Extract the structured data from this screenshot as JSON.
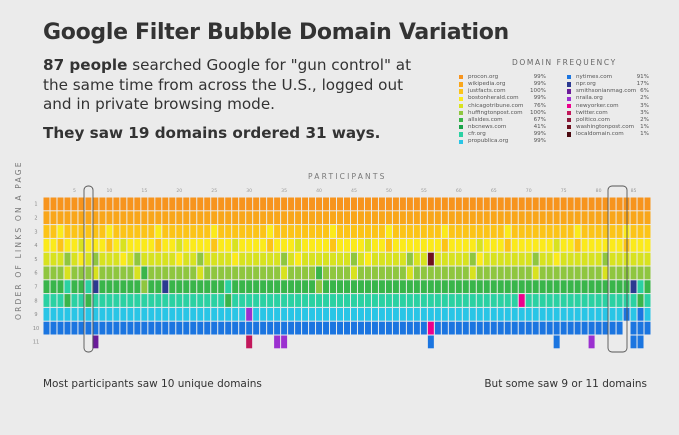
{
  "header": {
    "title": "Google Filter Bubble Domain Variation",
    "lede_bold": "87 people",
    "lede_rest": " searched Google for \"gun control\" at the same time from across the U.S., logged out and in private browsing mode.",
    "summary": "They saw 19 domains ordered 31 ways."
  },
  "legend": {
    "title": "DOMAIN FREQUENCY",
    "items": [
      {
        "name": "procon.org",
        "pct": "99%",
        "color": "#f7941d"
      },
      {
        "name": "wikipedia.org",
        "pct": "99%",
        "color": "#f9a61a"
      },
      {
        "name": "justfacts.com",
        "pct": "100%",
        "color": "#fcc417"
      },
      {
        "name": "bostonherald.com",
        "pct": "99%",
        "color": "#fbea1b"
      },
      {
        "name": "chicagotribune.com",
        "pct": "76%",
        "color": "#d8e21f"
      },
      {
        "name": "huffingtonpost.com",
        "pct": "100%",
        "color": "#8fc63f"
      },
      {
        "name": "allsides.com",
        "pct": "67%",
        "color": "#39b54a"
      },
      {
        "name": "nbcnews.com",
        "pct": "41%",
        "color": "#1aa34a"
      },
      {
        "name": "cfr.org",
        "pct": "99%",
        "color": "#2bd1a3"
      },
      {
        "name": "propublica.org",
        "pct": "99%",
        "color": "#29c5e6"
      },
      {
        "name": "nytimes.com",
        "pct": "91%",
        "color": "#1b75e0"
      },
      {
        "name": "npr.org",
        "pct": "17%",
        "color": "#2b3990"
      },
      {
        "name": "smithsonianmag.com",
        "pct": "6%",
        "color": "#6a1b9a"
      },
      {
        "name": "nraila.org",
        "pct": "2%",
        "color": "#9b30d0"
      },
      {
        "name": "newyorker.com",
        "pct": "3%",
        "color": "#ec008c"
      },
      {
        "name": "twitter.com",
        "pct": "3%",
        "color": "#c2185b"
      },
      {
        "name": "politico.com",
        "pct": "2%",
        "color": "#8b1a3a"
      },
      {
        "name": "washingtonpost.com",
        "pct": "1%",
        "color": "#6d0f1e"
      },
      {
        "name": "localdomain.com",
        "pct": "1%",
        "color": "#4a0a10"
      }
    ]
  },
  "axes": {
    "x_title": "PARTICIPANTS",
    "y_title": "ORDER OF LINKS ON A PAGE",
    "x_ticks": [
      "5",
      "10",
      "15",
      "20",
      "25",
      "30",
      "35",
      "40",
      "45",
      "50",
      "55",
      "60",
      "65",
      "70",
      "75",
      "80",
      "85"
    ],
    "y_ticks": [
      "1",
      "2",
      "3",
      "4",
      "5",
      "6",
      "7",
      "8",
      "9",
      "10",
      "11"
    ]
  },
  "callouts": {
    "left": "Most participants saw 10 unique domains",
    "right": "But some saw 9 or 11 domains"
  },
  "chart_data": {
    "type": "heatmap",
    "participants": 87,
    "positions": 11,
    "domains": 19,
    "orderings": 31,
    "domain_codes": [
      "procon.org",
      "wikipedia.org",
      "justfacts.com",
      "bostonherald.com",
      "chicagotribune.com",
      "huffingtonpost.com",
      "allsides.com",
      "nbcnews.com",
      "cfr.org",
      "propublica.org",
      "nytimes.com",
      "npr.org",
      "smithsonianmag.com",
      "nraila.org",
      "newyorker.com",
      "twitter.com",
      "politico.com",
      "washingtonpost.com",
      "localdomain.com"
    ],
    "note_on_encoding": "",
    "orderings_by_participant": [
      [
        0,
        1,
        2,
        3,
        4,
        5,
        6,
        8,
        9,
        10
      ],
      [
        0,
        1,
        2,
        3,
        4,
        5,
        6,
        8,
        9,
        10
      ],
      [
        0,
        1,
        3,
        2,
        4,
        5,
        6,
        8,
        9,
        10
      ],
      [
        0,
        1,
        2,
        3,
        5,
        4,
        8,
        6,
        9,
        10
      ],
      [
        0,
        1,
        2,
        3,
        4,
        5,
        6,
        8,
        9,
        10
      ],
      [
        0,
        1,
        2,
        4,
        3,
        5,
        6,
        8,
        9,
        10
      ],
      [
        0,
        1,
        2,
        3,
        4,
        5,
        8,
        6,
        9,
        10
      ],
      [
        0,
        1,
        2,
        3,
        5,
        4,
        11,
        8,
        9,
        10,
        12
      ],
      [
        0,
        1,
        2,
        3,
        4,
        5,
        6,
        8,
        9,
        10
      ],
      [
        0,
        1,
        3,
        2,
        4,
        5,
        6,
        8,
        9,
        10
      ],
      [
        0,
        1,
        2,
        3,
        4,
        5,
        6,
        8,
        9,
        10
      ],
      [
        0,
        1,
        2,
        4,
        3,
        5,
        6,
        8,
        9,
        10
      ],
      [
        0,
        1,
        2,
        3,
        4,
        5,
        6,
        8,
        9,
        10
      ],
      [
        0,
        1,
        2,
        3,
        5,
        4,
        6,
        8,
        9,
        10
      ],
      [
        0,
        1,
        2,
        3,
        4,
        6,
        5,
        8,
        9,
        10
      ],
      [
        0,
        1,
        2,
        3,
        4,
        5,
        6,
        8,
        9,
        10
      ],
      [
        0,
        1,
        3,
        2,
        4,
        5,
        6,
        8,
        9,
        10
      ],
      [
        0,
        1,
        2,
        3,
        4,
        5,
        11,
        8,
        9,
        10
      ],
      [
        0,
        1,
        2,
        3,
        4,
        5,
        6,
        8,
        9,
        10
      ],
      [
        0,
        1,
        2,
        4,
        3,
        5,
        6,
        8,
        9,
        10
      ],
      [
        0,
        1,
        2,
        3,
        4,
        5,
        6,
        8,
        9,
        10
      ],
      [
        0,
        1,
        2,
        3,
        4,
        5,
        6,
        8,
        9,
        10
      ],
      [
        0,
        1,
        2,
        3,
        5,
        4,
        6,
        8,
        9,
        10
      ],
      [
        0,
        1,
        2,
        3,
        4,
        5,
        6,
        8,
        9,
        10
      ],
      [
        0,
        1,
        3,
        2,
        4,
        5,
        6,
        8,
        9,
        10
      ],
      [
        0,
        1,
        2,
        3,
        4,
        5,
        6,
        8,
        9,
        10
      ],
      [
        0,
        1,
        2,
        3,
        4,
        5,
        8,
        6,
        9,
        10
      ],
      [
        0,
        1,
        2,
        4,
        3,
        5,
        6,
        8,
        9,
        10
      ],
      [
        0,
        1,
        2,
        3,
        4,
        5,
        6,
        8,
        9,
        10
      ],
      [
        0,
        1,
        2,
        3,
        4,
        5,
        6,
        8,
        13,
        10,
        15
      ],
      [
        0,
        1,
        2,
        3,
        4,
        5,
        6,
        8,
        9,
        10
      ],
      [
        0,
        1,
        2,
        3,
        4,
        5,
        6,
        8,
        9,
        10
      ],
      [
        0,
        1,
        3,
        2,
        4,
        5,
        6,
        8,
        9,
        10
      ],
      [
        0,
        1,
        2,
        3,
        4,
        5,
        6,
        8,
        9,
        10,
        13
      ],
      [
        0,
        1,
        2,
        3,
        5,
        4,
        6,
        8,
        9,
        10,
        13
      ],
      [
        0,
        1,
        2,
        3,
        4,
        5,
        6,
        8,
        9,
        10
      ],
      [
        0,
        1,
        2,
        4,
        3,
        5,
        6,
        8,
        9,
        10
      ],
      [
        0,
        1,
        2,
        3,
        4,
        5,
        6,
        8,
        9,
        10
      ],
      [
        0,
        1,
        2,
        3,
        4,
        5,
        6,
        8,
        9,
        10
      ],
      [
        0,
        1,
        2,
        3,
        4,
        6,
        5,
        8,
        9,
        10
      ],
      [
        0,
        1,
        2,
        3,
        4,
        5,
        6,
        8,
        9,
        10
      ],
      [
        0,
        1,
        3,
        2,
        4,
        5,
        6,
        8,
        9,
        10
      ],
      [
        0,
        1,
        2,
        3,
        4,
        5,
        6,
        8,
        9,
        10
      ],
      [
        0,
        1,
        2,
        3,
        4,
        5,
        6,
        8,
        9,
        10
      ],
      [
        0,
        1,
        2,
        3,
        5,
        4,
        6,
        8,
        9,
        10
      ],
      [
        0,
        1,
        2,
        3,
        4,
        5,
        6,
        8,
        9,
        10
      ],
      [
        0,
        1,
        2,
        4,
        3,
        5,
        6,
        8,
        9,
        10
      ],
      [
        0,
        1,
        2,
        3,
        4,
        5,
        6,
        8,
        9,
        10
      ],
      [
        0,
        1,
        2,
        3,
        4,
        5,
        6,
        8,
        9,
        10
      ],
      [
        0,
        1,
        3,
        2,
        4,
        5,
        6,
        8,
        9,
        10
      ],
      [
        0,
        1,
        2,
        3,
        4,
        5,
        6,
        8,
        9,
        10
      ],
      [
        0,
        1,
        2,
        3,
        4,
        5,
        6,
        8,
        9,
        10
      ],
      [
        0,
        1,
        2,
        3,
        5,
        4,
        6,
        8,
        9,
        10
      ],
      [
        0,
        1,
        2,
        3,
        4,
        5,
        6,
        8,
        9,
        10
      ],
      [
        0,
        1,
        2,
        3,
        4,
        5,
        6,
        8,
        9,
        10
      ],
      [
        0,
        1,
        2,
        3,
        17,
        5,
        6,
        8,
        9,
        14,
        10
      ],
      [
        0,
        1,
        2,
        3,
        4,
        5,
        6,
        8,
        9,
        10
      ],
      [
        0,
        1,
        3,
        2,
        4,
        5,
        6,
        8,
        9,
        10
      ],
      [
        0,
        1,
        2,
        3,
        4,
        5,
        6,
        8,
        9,
        10
      ],
      [
        0,
        1,
        2,
        3,
        4,
        5,
        6,
        8,
        9,
        10
      ],
      [
        0,
        1,
        2,
        3,
        4,
        5,
        6,
        8,
        9,
        10
      ],
      [
        0,
        1,
        2,
        3,
        5,
        4,
        6,
        8,
        9,
        10
      ],
      [
        0,
        1,
        2,
        4,
        3,
        5,
        6,
        8,
        9,
        10
      ],
      [
        0,
        1,
        2,
        3,
        4,
        5,
        6,
        8,
        9,
        10
      ],
      [
        0,
        1,
        2,
        3,
        4,
        5,
        6,
        8,
        9,
        10
      ],
      [
        0,
        1,
        2,
        3,
        4,
        5,
        6,
        8,
        9,
        10
      ],
      [
        0,
        1,
        3,
        2,
        4,
        5,
        6,
        8,
        9,
        10
      ],
      [
        0,
        1,
        2,
        3,
        4,
        5,
        6,
        8,
        9,
        10
      ],
      [
        0,
        1,
        2,
        3,
        4,
        5,
        6,
        14,
        9,
        10
      ],
      [
        0,
        1,
        2,
        3,
        4,
        5,
        6,
        8,
        9,
        10
      ],
      [
        0,
        1,
        2,
        3,
        5,
        4,
        6,
        8,
        9,
        10
      ],
      [
        0,
        1,
        2,
        3,
        4,
        5,
        6,
        8,
        9,
        10
      ],
      [
        0,
        1,
        2,
        3,
        4,
        5,
        6,
        8,
        9,
        10
      ],
      [
        0,
        1,
        2,
        4,
        3,
        5,
        6,
        8,
        9,
        10,
        10
      ],
      [
        0,
        1,
        2,
        3,
        4,
        5,
        6,
        8,
        9,
        10
      ],
      [
        0,
        1,
        2,
        3,
        4,
        5,
        6,
        8,
        9,
        10
      ],
      [
        0,
        1,
        3,
        2,
        4,
        5,
        6,
        8,
        9,
        10
      ],
      [
        0,
        1,
        2,
        3,
        4,
        5,
        6,
        8,
        9,
        10
      ],
      [
        0,
        1,
        2,
        3,
        4,
        5,
        6,
        8,
        9,
        10,
        13
      ],
      [
        0,
        1,
        2,
        3,
        4,
        5,
        6,
        8,
        9,
        10
      ],
      [
        0,
        1,
        2,
        3,
        5,
        4,
        6,
        8,
        9,
        10
      ],
      [
        0,
        1,
        2,
        3,
        4,
        5,
        6,
        8,
        9,
        10
      ],
      [
        0,
        1,
        2,
        3,
        4,
        5,
        6,
        8,
        9,
        10
      ],
      [
        0,
        1,
        3,
        2,
        4,
        5,
        6,
        8,
        10
      ],
      [
        0,
        1,
        2,
        3,
        4,
        5,
        11,
        8,
        9,
        10,
        10
      ],
      [
        0,
        1,
        2,
        3,
        4,
        5,
        8,
        6,
        10,
        10,
        10
      ],
      [
        0,
        1,
        2,
        3,
        4,
        5,
        6,
        8,
        9,
        10
      ]
    ]
  }
}
